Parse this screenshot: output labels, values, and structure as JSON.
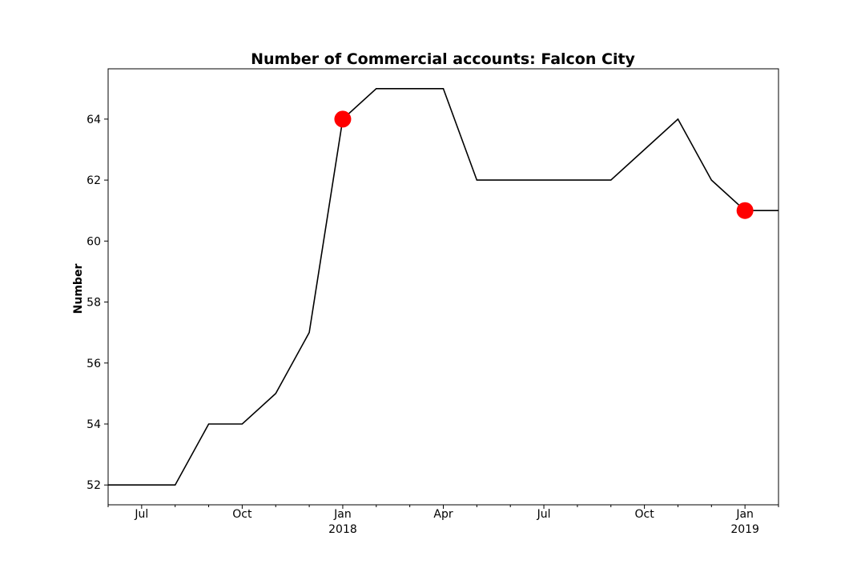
{
  "chart_data": {
    "type": "line",
    "title": "Number of Commercial accounts: Falcon City",
    "xlabel": "",
    "ylabel": "Number",
    "x": [
      "2017-06",
      "2017-07",
      "2017-08",
      "2017-09",
      "2017-10",
      "2017-11",
      "2017-12",
      "2018-01",
      "2018-02",
      "2018-03",
      "2018-04",
      "2018-05",
      "2018-06",
      "2018-07",
      "2018-08",
      "2018-09",
      "2018-10",
      "2018-11",
      "2018-12",
      "2019-01",
      "2019-02"
    ],
    "series": [
      {
        "values": [
          52,
          52,
          52,
          54,
          54,
          55,
          57,
          64,
          65,
          65,
          65,
          62,
          62,
          62,
          62,
          62,
          63,
          64,
          62,
          61,
          61
        ],
        "color": "#000000"
      }
    ],
    "highlighted_points": [
      {
        "x": "2018-01",
        "y": 64,
        "color": "#ff0000"
      },
      {
        "x": "2019-01",
        "y": 61,
        "color": "#ff0000"
      }
    ],
    "xlim": [
      "2017-06",
      "2019-02"
    ],
    "ylim": [
      51.35,
      65.65
    ],
    "y_ticks": [
      52,
      54,
      56,
      58,
      60,
      62,
      64
    ],
    "x_ticks": [
      {
        "x": "2017-07",
        "label": "Jul",
        "sublabel": ""
      },
      {
        "x": "2017-10",
        "label": "Oct",
        "sublabel": ""
      },
      {
        "x": "2018-01",
        "label": "Jan",
        "sublabel": "2018"
      },
      {
        "x": "2018-04",
        "label": "Apr",
        "sublabel": ""
      },
      {
        "x": "2018-07",
        "label": "Jul",
        "sublabel": ""
      },
      {
        "x": "2018-10",
        "label": "Oct",
        "sublabel": ""
      },
      {
        "x": "2019-01",
        "label": "Jan",
        "sublabel": "2019"
      }
    ],
    "x_minor_ticks": [
      "2017-06",
      "2017-08",
      "2017-09",
      "2017-11",
      "2017-12",
      "2018-02",
      "2018-03",
      "2018-05",
      "2018-06",
      "2018-08",
      "2018-09",
      "2018-11",
      "2018-12",
      "2019-02"
    ],
    "grid": false,
    "legend": "none"
  }
}
